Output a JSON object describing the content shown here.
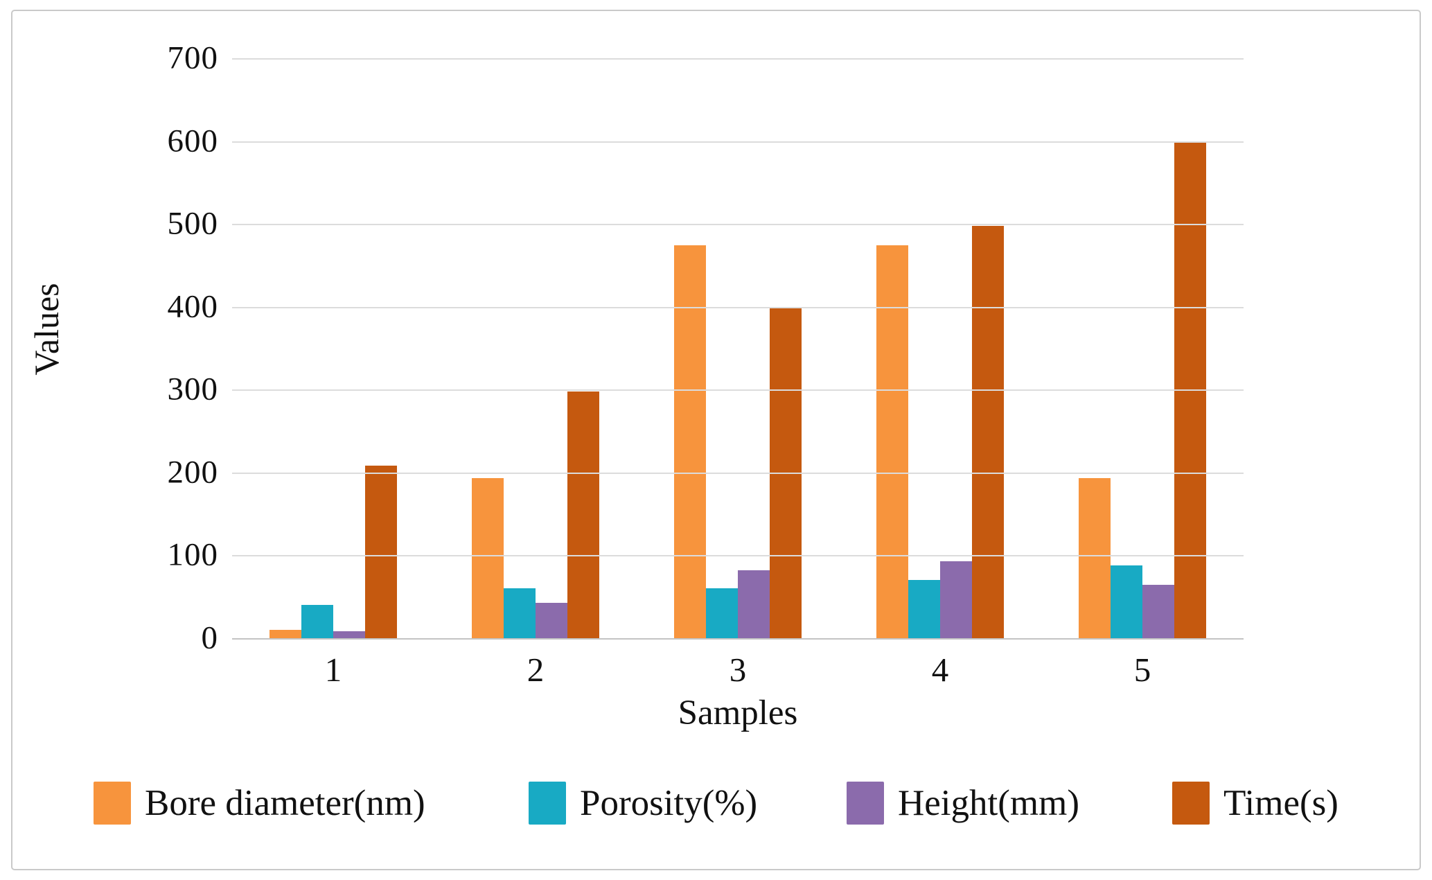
{
  "chart_data": {
    "type": "bar",
    "title": "",
    "xlabel": "Samples",
    "ylabel": "Values",
    "categories": [
      "1",
      "2",
      "3",
      "4",
      "5"
    ],
    "series": [
      {
        "name": "Bore diameter(nm)",
        "color": "#F7943D",
        "values": [
          10,
          193,
          474,
          474,
          193
        ]
      },
      {
        "name": "Porosity(%)",
        "color": "#18AAC4",
        "values": [
          40,
          60,
          60,
          70,
          88
        ]
      },
      {
        "name": "Height(mm)",
        "color": "#8B6BAC",
        "values": [
          8,
          43,
          82,
          93,
          64
        ]
      },
      {
        "name": "Time(s)",
        "color": "#C5590F",
        "values": [
          208,
          298,
          398,
          498,
          598
        ]
      }
    ],
    "ylim": [
      0,
      700
    ],
    "ytick_step": 100,
    "yticks": [
      "0",
      "100",
      "200",
      "300",
      "400",
      "500",
      "600",
      "700"
    ],
    "grid": "horizontal",
    "legend_position": "bottom",
    "colors": {
      "gridline": "#dcdcdc",
      "axis_line": "#c4c4c4",
      "frame_border": "#c9c9c9",
      "text": "#111111"
    }
  }
}
